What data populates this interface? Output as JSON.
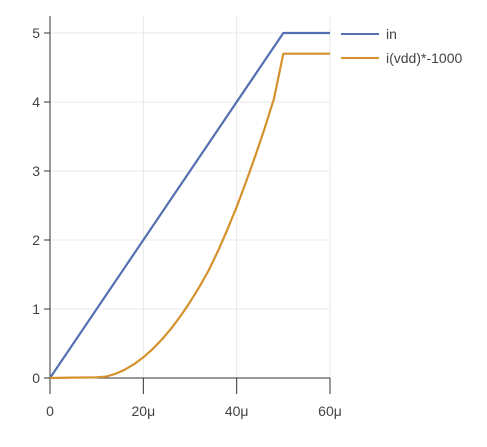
{
  "chart_data": {
    "type": "line",
    "title": "",
    "xlabel": "",
    "ylabel": "",
    "xlim": [
      0,
      6e-05
    ],
    "ylim": [
      0,
      5
    ],
    "x_ticks": [
      {
        "value": 0,
        "label": "0"
      },
      {
        "value": 2e-05,
        "label": "20μ"
      },
      {
        "value": 4e-05,
        "label": "40μ"
      },
      {
        "value": 6e-05,
        "label": "60μ"
      }
    ],
    "y_ticks": [
      {
        "value": 0,
        "label": "0"
      },
      {
        "value": 1,
        "label": "1"
      },
      {
        "value": 2,
        "label": "2"
      },
      {
        "value": 3,
        "label": "3"
      },
      {
        "value": 4,
        "label": "4"
      },
      {
        "value": 5,
        "label": "5"
      }
    ],
    "grid": true,
    "legend_position": "top-right",
    "series": [
      {
        "name": "in",
        "color": "#5470b0",
        "x": [
          0,
          5e-05,
          6e-05
        ],
        "y": [
          0,
          5,
          5
        ]
      },
      {
        "name": "i(vdd)*-1000",
        "color": "#d4912c",
        "x": [
          0,
          5e-06,
          1e-05,
          1.2e-05,
          1.4e-05,
          1.6e-05,
          1.8e-05,
          2e-05,
          2.2e-05,
          2.4e-05,
          2.6e-05,
          2.8e-05,
          3e-05,
          3.2e-05,
          3.4e-05,
          3.6e-05,
          3.8e-05,
          4e-05,
          4.2e-05,
          4.4e-05,
          4.6e-05,
          4.8e-05,
          5e-05,
          6e-05
        ],
        "y": [
          0,
          0.005,
          0.01,
          0.02,
          0.06,
          0.12,
          0.2,
          0.3,
          0.42,
          0.56,
          0.72,
          0.9,
          1.1,
          1.32,
          1.56,
          1.84,
          2.15,
          2.48,
          2.84,
          3.22,
          3.62,
          4.05,
          4.7,
          4.7
        ]
      }
    ]
  }
}
